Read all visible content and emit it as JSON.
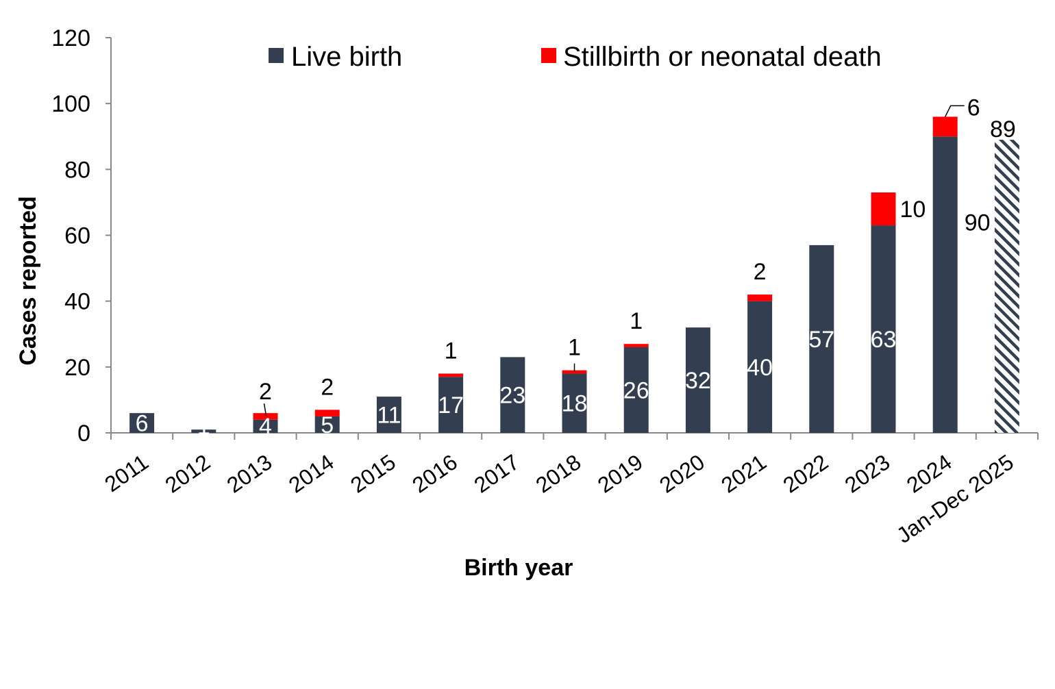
{
  "chart_data": {
    "type": "bar",
    "stacked": true,
    "xlabel": "Birth year",
    "ylabel": "Cases reported",
    "ylim": [
      0,
      120
    ],
    "yticks": [
      0,
      20,
      40,
      60,
      80,
      100,
      120
    ],
    "grid": false,
    "legend_position": "top",
    "categories": [
      "2011",
      "2012",
      "2013",
      "2014",
      "2015",
      "2016",
      "2017",
      "2018",
      "2019",
      "2020",
      "2021",
      "2022",
      "2023",
      "2024",
      "Jan-Dec 2025"
    ],
    "series": [
      {
        "name": "Live birth",
        "color": "#333f50",
        "values": [
          6,
          1,
          4,
          5,
          11,
          17,
          23,
          18,
          26,
          32,
          40,
          57,
          63,
          90,
          null
        ]
      },
      {
        "name": "Stillbirth or neonatal death",
        "color": "#ff0000",
        "values": [
          0,
          0,
          2,
          2,
          0,
          1,
          0,
          1,
          1,
          0,
          2,
          0,
          10,
          6,
          null
        ]
      }
    ],
    "provisional": {
      "category": "Jan-Dec 2025",
      "total": 89,
      "pattern": "diagonal hatch",
      "color": "#333f50"
    }
  }
}
